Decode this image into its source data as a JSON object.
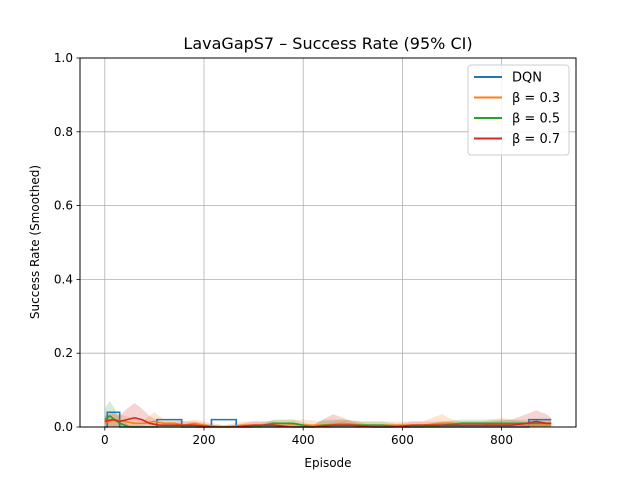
{
  "chart_data": {
    "type": "line",
    "title": "LavaGapS7 – Success Rate (95% CI)",
    "xlabel": "Episode",
    "ylabel": "Success Rate (Smoothed)",
    "xlim": [
      -50,
      950
    ],
    "ylim": [
      0,
      1.0
    ],
    "xticks": [
      0,
      200,
      400,
      600,
      800
    ],
    "xtick_labels": [
      "0",
      "200",
      "400",
      "600",
      "800"
    ],
    "yticks": [
      0,
      0.2,
      0.4,
      0.6,
      0.8,
      1.0
    ],
    "ytick_labels": [
      "0.0",
      "0.2",
      "0.4",
      "0.6",
      "0.8",
      "1.0"
    ],
    "grid": true,
    "legend_position": "top-right",
    "series": [
      {
        "name": "DQN",
        "color": "#1f77b4",
        "step": true,
        "x": [
          0,
          5,
          5,
          30,
          30,
          105,
          105,
          155,
          155,
          215,
          215,
          265,
          265,
          855,
          855,
          900
        ],
        "y": [
          0.0,
          0.0,
          0.04,
          0.04,
          0.0,
          0.0,
          0.02,
          0.02,
          0.0,
          0.0,
          0.02,
          0.02,
          0.0,
          0.0,
          0.02,
          0.02
        ],
        "ci": null
      },
      {
        "name": "β = 0.3",
        "color": "#ff7f0e",
        "step": false,
        "x": [
          0,
          20,
          40,
          60,
          80,
          100,
          120,
          140,
          160,
          180,
          200,
          240,
          280,
          320,
          360,
          400,
          440,
          480,
          520,
          560,
          600,
          640,
          680,
          700,
          720,
          760,
          800,
          840,
          880,
          900
        ],
        "y": [
          0.01,
          0.02,
          0.015,
          0.01,
          0.01,
          0.015,
          0.01,
          0.01,
          0.005,
          0.01,
          0.005,
          0.0,
          0.005,
          0.005,
          0.01,
          0.005,
          0.005,
          0.01,
          0.005,
          0.005,
          0.005,
          0.005,
          0.01,
          0.01,
          0.005,
          0.005,
          0.01,
          0.005,
          0.005,
          0.005
        ],
        "ci_low": [
          0.0,
          0.0,
          0.0,
          0.0,
          0.0,
          0.0,
          0.0,
          0.0,
          0.0,
          0.0,
          0.0,
          0.0,
          0.0,
          0.0,
          0.0,
          0.0,
          0.0,
          0.0,
          0.0,
          0.0,
          0.0,
          0.0,
          0.0,
          0.0,
          0.0,
          0.0,
          0.0,
          0.0,
          0.0,
          0.0
        ],
        "ci_high": [
          0.03,
          0.04,
          0.03,
          0.025,
          0.02,
          0.04,
          0.02,
          0.02,
          0.015,
          0.02,
          0.015,
          0.005,
          0.015,
          0.015,
          0.02,
          0.02,
          0.015,
          0.02,
          0.015,
          0.015,
          0.015,
          0.015,
          0.035,
          0.02,
          0.015,
          0.015,
          0.025,
          0.015,
          0.015,
          0.015
        ]
      },
      {
        "name": "β = 0.5",
        "color": "#2ca02c",
        "step": false,
        "x": [
          0,
          10,
          20,
          30,
          50,
          70,
          100,
          150,
          200,
          250,
          300,
          340,
          380,
          420,
          440,
          480,
          520,
          560,
          600,
          640,
          680,
          720,
          760,
          800,
          840,
          880,
          900
        ],
        "y": [
          0.02,
          0.03,
          0.02,
          0.01,
          0.0,
          0.0,
          0.0,
          0.0,
          0.0,
          0.0,
          0.0,
          0.01,
          0.01,
          0.0,
          0.005,
          0.005,
          0.005,
          0.005,
          0.0,
          0.0,
          0.005,
          0.01,
          0.01,
          0.01,
          0.01,
          0.01,
          0.01
        ],
        "ci_low": [
          0.0,
          0.0,
          0.0,
          0.0,
          0.0,
          0.0,
          0.0,
          0.0,
          0.0,
          0.0,
          0.0,
          0.0,
          0.0,
          0.0,
          0.0,
          0.0,
          0.0,
          0.0,
          0.0,
          0.0,
          0.0,
          0.0,
          0.0,
          0.0,
          0.0,
          0.0,
          0.0
        ],
        "ci_high": [
          0.05,
          0.07,
          0.05,
          0.02,
          0.005,
          0.005,
          0.0,
          0.0,
          0.0,
          0.0,
          0.0,
          0.02,
          0.02,
          0.005,
          0.02,
          0.02,
          0.015,
          0.015,
          0.005,
          0.005,
          0.015,
          0.02,
          0.02,
          0.02,
          0.02,
          0.02,
          0.02
        ]
      },
      {
        "name": "β = 0.7",
        "color": "#d62728",
        "step": false,
        "x": [
          0,
          15,
          30,
          45,
          60,
          75,
          90,
          110,
          130,
          150,
          180,
          220,
          260,
          300,
          340,
          380,
          420,
          460,
          500,
          540,
          580,
          620,
          660,
          700,
          740,
          780,
          820,
          850,
          870,
          890,
          900
        ],
        "y": [
          0.015,
          0.02,
          0.015,
          0.02,
          0.025,
          0.02,
          0.01,
          0.005,
          0.005,
          0.005,
          0.005,
          0.0,
          0.0,
          0.005,
          0.005,
          0.0,
          0.0,
          0.005,
          0.005,
          0.0,
          0.0,
          0.005,
          0.005,
          0.005,
          0.005,
          0.005,
          0.005,
          0.01,
          0.015,
          0.01,
          0.01
        ],
        "ci_low": [
          0.0,
          0.0,
          0.0,
          0.0,
          0.0,
          0.0,
          0.0,
          0.0,
          0.0,
          0.0,
          0.0,
          0.0,
          0.0,
          0.0,
          0.0,
          0.0,
          0.0,
          0.0,
          0.0,
          0.0,
          0.0,
          0.0,
          0.0,
          0.0,
          0.0,
          0.0,
          0.0,
          0.0,
          0.0,
          0.0,
          0.0
        ],
        "ci_high": [
          0.03,
          0.04,
          0.03,
          0.05,
          0.065,
          0.05,
          0.03,
          0.015,
          0.015,
          0.015,
          0.015,
          0.005,
          0.005,
          0.015,
          0.015,
          0.005,
          0.005,
          0.035,
          0.015,
          0.005,
          0.005,
          0.015,
          0.015,
          0.015,
          0.015,
          0.015,
          0.02,
          0.035,
          0.045,
          0.035,
          0.025
        ]
      }
    ]
  }
}
